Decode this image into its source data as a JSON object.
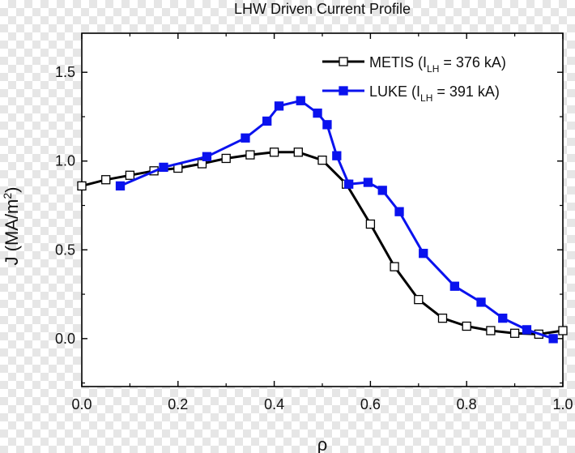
{
  "chart_data": {
    "type": "line",
    "title": "LHW Driven Current Profile",
    "xlabel": "ρ",
    "ylabel": {
      "text": "J (MA/m",
      "sup": "2",
      "close": ")"
    },
    "xlim": [
      0.0,
      1.0
    ],
    "ylim": [
      -0.27,
      1.72
    ],
    "xticks": [
      0.0,
      0.2,
      0.4,
      0.6,
      0.8,
      1.0
    ],
    "xtick_labels": [
      "0.0",
      "0.2",
      "0.4",
      "0.6",
      "0.8",
      "1.0"
    ],
    "yticks": [
      0.0,
      0.5,
      1.0,
      1.5
    ],
    "ytick_labels": [
      "0.0",
      "0.5",
      "1.0",
      "1.5"
    ],
    "grid": false,
    "legend_position": "top-right",
    "series": [
      {
        "name": "METIS",
        "legend": {
          "label": "METIS",
          "ipre": "(I",
          "isub": "LH",
          "ipost": " = 376 kA)"
        },
        "color": "#000000",
        "marker": "open-square",
        "x": [
          0.0,
          0.05,
          0.1,
          0.15,
          0.2,
          0.25,
          0.3,
          0.35,
          0.4,
          0.45,
          0.5,
          0.55,
          0.6,
          0.65,
          0.7,
          0.75,
          0.8,
          0.85,
          0.9,
          0.95,
          1.0
        ],
        "y": [
          0.86,
          0.895,
          0.92,
          0.945,
          0.96,
          0.985,
          1.015,
          1.035,
          1.05,
          1.05,
          1.005,
          0.87,
          0.645,
          0.405,
          0.22,
          0.115,
          0.07,
          0.045,
          0.03,
          0.025,
          0.045
        ]
      },
      {
        "name": "LUKE",
        "legend": {
          "label": "LUKE",
          "ipre": " (I",
          "isub": "LH",
          "ipost": " = 391 kA)"
        },
        "color": "#0a12ee",
        "marker": "filled-square",
        "x": [
          0.08,
          0.17,
          0.26,
          0.34,
          0.385,
          0.41,
          0.455,
          0.49,
          0.51,
          0.53,
          0.555,
          0.595,
          0.625,
          0.66,
          0.71,
          0.775,
          0.83,
          0.875,
          0.925,
          0.98
        ],
        "y": [
          0.86,
          0.965,
          1.025,
          1.13,
          1.225,
          1.31,
          1.34,
          1.27,
          1.205,
          1.03,
          0.87,
          0.88,
          0.835,
          0.715,
          0.48,
          0.295,
          0.205,
          0.115,
          0.05,
          0.0
        ]
      }
    ]
  }
}
